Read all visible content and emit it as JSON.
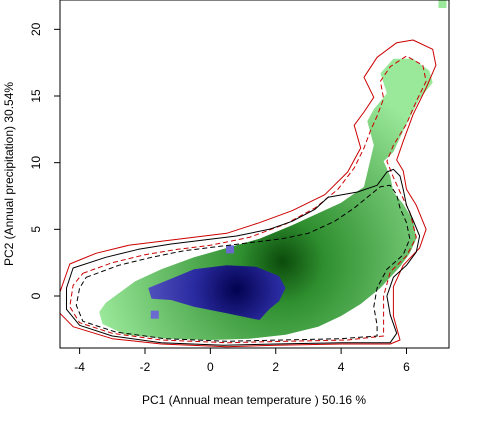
{
  "chart_data": {
    "type": "heatmap",
    "title": "",
    "xlabel": "PC1 (Annual mean temperature ) 50.16 %",
    "ylabel": "PC2 (Annual precipitation) 30.54%",
    "xlim": [
      -4.6,
      7.3
    ],
    "ylim": [
      -3.9,
      22.2
    ],
    "x_ticks": [
      -4,
      -2,
      0,
      2,
      4,
      6
    ],
    "y_ticks": [
      0,
      5,
      10,
      15,
      20
    ],
    "grid": false,
    "legend": "none",
    "colors": {
      "density_green": "#9ae89a",
      "density_dark_green": "#0b4a0b",
      "density_blue": "#6a6ad0",
      "density_dark_blue": "#020250",
      "contour_red": "#cc0000",
      "contour_black": "#000000"
    },
    "green_density_region": {
      "outline": [
        [
          -3.2,
          -0.5
        ],
        [
          -2.3,
          1.1
        ],
        [
          -1.5,
          2.0
        ],
        [
          -0.5,
          2.9
        ],
        [
          0.5,
          3.6
        ],
        [
          1.5,
          4.3
        ],
        [
          2.5,
          5.3
        ],
        [
          3.3,
          6.2
        ],
        [
          4.0,
          7.0
        ],
        [
          4.7,
          8.2
        ],
        [
          5.0,
          11.3
        ],
        [
          4.8,
          13.1
        ],
        [
          5.0,
          14.0
        ],
        [
          5.4,
          15.2
        ],
        [
          5.2,
          16.7
        ],
        [
          5.6,
          17.8
        ],
        [
          6.2,
          17.8
        ],
        [
          6.7,
          16.9
        ],
        [
          6.8,
          16.0
        ],
        [
          6.4,
          14.8
        ],
        [
          6.0,
          12.9
        ],
        [
          5.6,
          10.8
        ],
        [
          5.3,
          10.1
        ],
        [
          5.5,
          9.0
        ],
        [
          5.6,
          7.8
        ],
        [
          5.9,
          6.9
        ],
        [
          6.2,
          5.7
        ],
        [
          6.3,
          4.3
        ],
        [
          6.1,
          3.2
        ],
        [
          5.8,
          2.2
        ],
        [
          5.2,
          0.6
        ],
        [
          4.6,
          -0.6
        ],
        [
          4.0,
          -1.5
        ],
        [
          3.3,
          -2.3
        ],
        [
          2.3,
          -2.9
        ],
        [
          1.2,
          -3.2
        ],
        [
          0.0,
          -3.3
        ],
        [
          -1.3,
          -3.2
        ],
        [
          -2.6,
          -2.9
        ],
        [
          -3.3,
          -2.1
        ],
        [
          -3.4,
          -1.2
        ]
      ],
      "peak": {
        "x": 2.2,
        "y": 2.6
      }
    },
    "blue_density_region": {
      "outline": [
        [
          -1.9,
          0.6
        ],
        [
          -1.2,
          1.3
        ],
        [
          -0.5,
          2.0
        ],
        [
          0.5,
          2.3
        ],
        [
          1.4,
          2.2
        ],
        [
          2.1,
          1.5
        ],
        [
          2.3,
          0.6
        ],
        [
          2.1,
          -0.4
        ],
        [
          1.8,
          -1.0
        ],
        [
          1.5,
          -1.8
        ],
        [
          0.5,
          -1.3
        ],
        [
          -0.5,
          -0.8
        ],
        [
          -1.2,
          -0.3
        ],
        [
          -1.8,
          -0.2
        ]
      ],
      "peak": {
        "x": 0.8,
        "y": 0.5
      }
    },
    "small_blocks": [
      {
        "x": 0.6,
        "y": 3.5,
        "color": "#6a6ad0"
      },
      {
        "x": -1.7,
        "y": -1.4,
        "color": "#6a6ad0"
      },
      {
        "x": 7.1,
        "y": 21.9,
        "color": "#9ae89a"
      }
    ],
    "contours": [
      {
        "color": "#cc0000",
        "dash": "solid",
        "closed": true,
        "points": [
          [
            -4.3,
            2.4
          ],
          [
            -3.5,
            3.2
          ],
          [
            -2.5,
            3.8
          ],
          [
            -1.5,
            4.1
          ],
          [
            -0.5,
            4.4
          ],
          [
            0.5,
            4.7
          ],
          [
            1.5,
            5.5
          ],
          [
            2.5,
            6.4
          ],
          [
            3.5,
            7.6
          ],
          [
            4.2,
            9.3
          ],
          [
            4.6,
            11.1
          ],
          [
            4.4,
            12.8
          ],
          [
            4.7,
            13.8
          ],
          [
            5.0,
            14.9
          ],
          [
            4.7,
            16.4
          ],
          [
            5.1,
            17.9
          ],
          [
            5.7,
            19.0
          ],
          [
            6.2,
            19.2
          ],
          [
            6.8,
            18.5
          ],
          [
            6.9,
            17.3
          ],
          [
            6.6,
            15.6
          ],
          [
            6.2,
            13.6
          ],
          [
            5.9,
            11.6
          ],
          [
            5.7,
            10.2
          ],
          [
            5.9,
            9.4
          ],
          [
            6.0,
            8.0
          ],
          [
            6.3,
            6.8
          ],
          [
            6.6,
            5.0
          ],
          [
            6.4,
            3.6
          ],
          [
            5.9,
            2.3
          ],
          [
            5.6,
            0.7
          ],
          [
            5.6,
            -1.5
          ],
          [
            5.8,
            -3.3
          ],
          [
            5.5,
            -3.6
          ],
          [
            4.0,
            -3.6
          ],
          [
            2.0,
            -3.7
          ],
          [
            0.5,
            -3.8
          ],
          [
            -1.5,
            -3.6
          ],
          [
            -3.0,
            -3.2
          ],
          [
            -4.2,
            -2.3
          ],
          [
            -4.6,
            -1.3
          ],
          [
            -4.6,
            0.3
          ]
        ]
      },
      {
        "color": "#cc0000",
        "dash": "dashed",
        "closed": true,
        "points": [
          [
            -3.9,
            1.7
          ],
          [
            -3.0,
            2.5
          ],
          [
            -2.0,
            3.1
          ],
          [
            -1.0,
            3.5
          ],
          [
            0.0,
            3.8
          ],
          [
            1.2,
            4.4
          ],
          [
            2.3,
            5.4
          ],
          [
            3.2,
            6.6
          ],
          [
            3.9,
            8.0
          ],
          [
            4.4,
            9.6
          ],
          [
            4.7,
            11.1
          ],
          [
            4.9,
            12.4
          ],
          [
            5.1,
            13.5
          ],
          [
            5.3,
            14.8
          ],
          [
            5.2,
            16.1
          ],
          [
            5.5,
            17.2
          ],
          [
            6.0,
            18.0
          ],
          [
            6.5,
            17.3
          ],
          [
            6.6,
            16.1
          ],
          [
            6.3,
            14.6
          ],
          [
            6.0,
            12.9
          ],
          [
            5.6,
            11.3
          ],
          [
            5.4,
            10.1
          ],
          [
            5.6,
            8.9
          ],
          [
            5.8,
            7.8
          ],
          [
            6.1,
            6.3
          ],
          [
            6.3,
            4.4
          ],
          [
            6.0,
            3.0
          ],
          [
            5.5,
            1.8
          ],
          [
            5.3,
            0.0
          ],
          [
            5.3,
            -1.8
          ],
          [
            5.3,
            -3.0
          ],
          [
            4.2,
            -3.3
          ],
          [
            2.3,
            -3.4
          ],
          [
            0.5,
            -3.5
          ],
          [
            -1.5,
            -3.3
          ],
          [
            -3.0,
            -2.8
          ],
          [
            -4.0,
            -2.0
          ],
          [
            -4.3,
            -0.8
          ],
          [
            -4.2,
            0.8
          ]
        ]
      },
      {
        "color": "#000000",
        "dash": "solid",
        "closed": true,
        "points": [
          [
            -4.2,
            2.1
          ],
          [
            -3.2,
            2.9
          ],
          [
            -2.2,
            3.5
          ],
          [
            -1.2,
            3.9
          ],
          [
            -0.2,
            4.2
          ],
          [
            0.8,
            4.5
          ],
          [
            1.8,
            5.0
          ],
          [
            2.5,
            5.6
          ],
          [
            3.2,
            6.5
          ],
          [
            3.6,
            7.4
          ],
          [
            4.5,
            7.8
          ],
          [
            5.1,
            8.3
          ],
          [
            5.4,
            9.3
          ],
          [
            5.6,
            9.5
          ],
          [
            5.8,
            9.0
          ],
          [
            5.9,
            8.0
          ],
          [
            6.0,
            6.8
          ],
          [
            6.2,
            5.7
          ],
          [
            6.4,
            4.5
          ],
          [
            6.3,
            3.3
          ],
          [
            6.0,
            2.3
          ],
          [
            5.6,
            1.4
          ],
          [
            5.4,
            0.0
          ],
          [
            5.5,
            -1.4
          ],
          [
            5.7,
            -2.8
          ],
          [
            5.5,
            -3.5
          ],
          [
            4.0,
            -3.5
          ],
          [
            2.0,
            -3.6
          ],
          [
            0.4,
            -3.7
          ],
          [
            -1.5,
            -3.5
          ],
          [
            -3.0,
            -3.0
          ],
          [
            -4.0,
            -2.2
          ],
          [
            -4.4,
            -1.0
          ],
          [
            -4.4,
            0.6
          ]
        ]
      },
      {
        "color": "#000000",
        "dash": "dashed",
        "closed": true,
        "points": [
          [
            -3.8,
            1.4
          ],
          [
            -2.8,
            2.3
          ],
          [
            -1.8,
            2.9
          ],
          [
            -0.8,
            3.4
          ],
          [
            0.2,
            3.7
          ],
          [
            1.2,
            4.0
          ],
          [
            2.2,
            4.3
          ],
          [
            3.0,
            4.7
          ],
          [
            3.8,
            5.6
          ],
          [
            4.4,
            6.6
          ],
          [
            4.8,
            7.4
          ],
          [
            5.2,
            8.2
          ],
          [
            5.5,
            8.3
          ],
          [
            5.7,
            7.6
          ],
          [
            5.8,
            6.6
          ],
          [
            6.0,
            5.5
          ],
          [
            6.1,
            4.3
          ],
          [
            5.9,
            3.1
          ],
          [
            5.4,
            2.0
          ],
          [
            5.1,
            0.6
          ],
          [
            5.0,
            -0.8
          ],
          [
            5.1,
            -2.2
          ],
          [
            5.1,
            -3.0
          ],
          [
            4.0,
            -3.2
          ],
          [
            2.2,
            -3.3
          ],
          [
            0.5,
            -3.4
          ],
          [
            -1.4,
            -3.2
          ],
          [
            -2.9,
            -2.7
          ],
          [
            -3.9,
            -1.9
          ],
          [
            -4.1,
            -0.7
          ],
          [
            -4.0,
            0.6
          ]
        ]
      }
    ]
  }
}
